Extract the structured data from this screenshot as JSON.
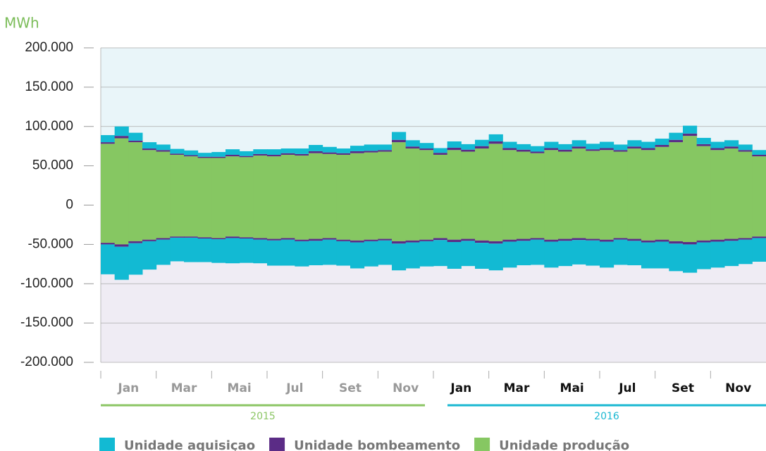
{
  "chart_data": {
    "type": "bar",
    "y_axis_label": "MWh",
    "ylim": [
      -200000,
      200000
    ],
    "yticks": [
      {
        "value": 200000,
        "label": "200.000"
      },
      {
        "value": 150000,
        "label": "150.000"
      },
      {
        "value": 100000,
        "label": "100.000"
      },
      {
        "value": 50000,
        "label": "50.000"
      },
      0,
      {
        "value": -50000,
        "label": "-50.000"
      },
      {
        "value": -100000,
        "label": "-100.000"
      },
      {
        "value": -150000,
        "label": "-150.000"
      },
      {
        "value": -200000,
        "label": "-200.000"
      }
    ],
    "grid": true,
    "month_labels": [
      "Jan",
      "Mar",
      "Mai",
      "Jul",
      "Set",
      "Nov",
      "Jan",
      "Mar",
      "Mai",
      "Jul",
      "Set",
      "Nov"
    ],
    "years": [
      {
        "label": "2015",
        "color": "#8cc665"
      },
      {
        "label": "2016",
        "color": "#1ab8d2"
      }
    ],
    "series": [
      {
        "name": "Unidade aquisiçao",
        "color": "#12bad3",
        "values": [
          9000,
          12000,
          10000,
          8000,
          7000,
          6000,
          6000,
          5000,
          6000,
          7000,
          6000,
          6000,
          7000,
          6000,
          7000,
          8000,
          7000,
          6000,
          7000,
          8000,
          7000,
          10000,
          8000,
          7000,
          6000,
          8000,
          7000,
          8000,
          9000,
          8000,
          7000,
          7000,
          8000,
          7000,
          8000,
          7000,
          8000,
          7000,
          8000,
          8000,
          8000,
          9000,
          10000,
          8000,
          8000,
          8000,
          7000,
          6000
        ],
        "neg_values": [
          -38000,
          -42000,
          -40000,
          -36000,
          -32000,
          -30000,
          -31000,
          -30000,
          -30000,
          -32000,
          -31000,
          -30000,
          -32000,
          -33000,
          -32000,
          -31000,
          -32000,
          -31000,
          -33000,
          -32000,
          -31000,
          -34000,
          -33000,
          -32000,
          -33000,
          -34000,
          -32000,
          -33000,
          -34000,
          -33000,
          -31000,
          -32000,
          -33000,
          -32000,
          -31000,
          -32000,
          -33000,
          -32000,
          -31000,
          -33000,
          -34000,
          -35000,
          -36000,
          -34000,
          -33000,
          -32000,
          -31000,
          -30000
        ]
      },
      {
        "name": "Unidade bombeamento",
        "color": "#5b2c86",
        "values": [
          2000,
          3000,
          2000,
          2000,
          2000,
          1500,
          1500,
          1500,
          1500,
          2000,
          1500,
          2000,
          2000,
          2000,
          2000,
          2500,
          2000,
          2000,
          2500,
          2000,
          2000,
          3000,
          2500,
          2000,
          2500,
          3000,
          2500,
          3000,
          3000,
          2500,
          2500,
          2000,
          2500,
          2500,
          2500,
          2000,
          2500,
          2000,
          2500,
          2500,
          2500,
          3000,
          3000,
          2500,
          2500,
          2500,
          2000,
          2000
        ],
        "neg_values": [
          -2000,
          -3000,
          -2500,
          -2000,
          -2000,
          -1500,
          -1500,
          -1500,
          -1500,
          -2000,
          -1500,
          -2000,
          -2000,
          -2000,
          -2000,
          -2500,
          -2000,
          -2000,
          -2500,
          -2000,
          -2000,
          -3000,
          -2500,
          -2000,
          -2500,
          -3000,
          -2500,
          -3000,
          -3000,
          -2500,
          -2500,
          -2000,
          -2500,
          -2500,
          -2500,
          -2000,
          -2500,
          -2000,
          -2500,
          -2500,
          -2500,
          -3000,
          -3000,
          -2500,
          -2500,
          -2500,
          -2000,
          -2000
        ]
      },
      {
        "name": "Unidade produção",
        "color": "#86c762",
        "values": [
          78000,
          85000,
          80000,
          70000,
          68000,
          64000,
          62000,
          60000,
          60000,
          62000,
          61000,
          63000,
          62000,
          64000,
          63000,
          66000,
          65000,
          64000,
          66000,
          67000,
          68000,
          80000,
          72000,
          70000,
          64000,
          70000,
          68000,
          72000,
          78000,
          70000,
          68000,
          66000,
          70000,
          68000,
          72000,
          69000,
          70000,
          68000,
          72000,
          70000,
          74000,
          80000,
          88000,
          75000,
          70000,
          72000,
          68000,
          62000
        ],
        "neg_values": [
          -48000,
          -50000,
          -46000,
          -44000,
          -42000,
          -40000,
          -40000,
          -41000,
          -42000,
          -40000,
          -41000,
          -42000,
          -43000,
          -42000,
          -44000,
          -43000,
          -42000,
          -44000,
          -45000,
          -44000,
          -43000,
          -46000,
          -45000,
          -44000,
          -42000,
          -44000,
          -43000,
          -45000,
          -46000,
          -44000,
          -43000,
          -42000,
          -44000,
          -43000,
          -42000,
          -43000,
          -44000,
          -42000,
          -43000,
          -45000,
          -44000,
          -46000,
          -47000,
          -45000,
          -44000,
          -43000,
          -42000,
          -40000
        ]
      }
    ]
  }
}
